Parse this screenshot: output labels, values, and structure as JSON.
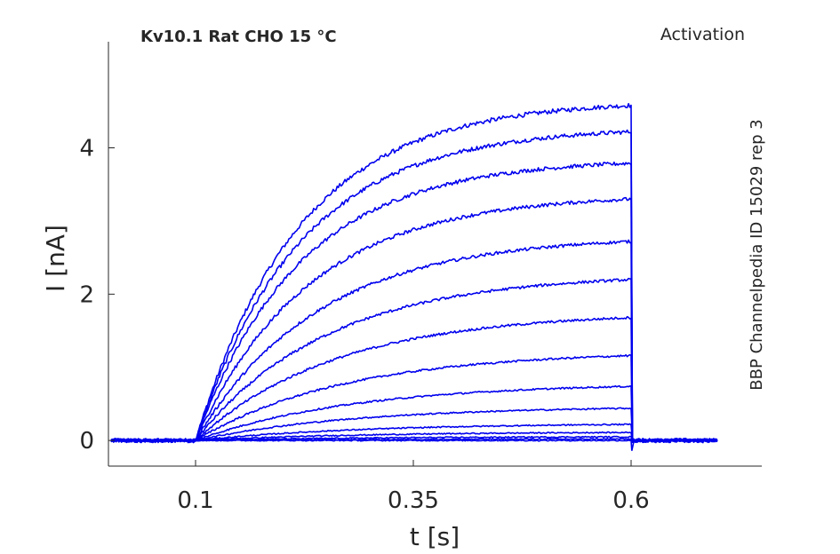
{
  "chart_data": {
    "type": "line",
    "title": "Kv10.1  Rat  CHO  15 °C",
    "protocol_label": "Activation",
    "side_label": "BBP Channelpedia ID 15029 rep 3",
    "xlabel": "t [s]",
    "ylabel": "I [nA]",
    "xlim": [
      0.0,
      0.75
    ],
    "ylim": [
      -0.35,
      5.45
    ],
    "xticks": [
      0.1,
      0.35,
      0.6
    ],
    "xtick_labels": [
      "0.1",
      "0.35",
      "0.6"
    ],
    "yticks": [
      0,
      2,
      4
    ],
    "ytick_labels": [
      "0",
      "2",
      "4"
    ],
    "grid": false,
    "trace_color": "#0000ee",
    "time_range": [
      0.003,
      0.7
    ],
    "pulse_on": 0.1,
    "pulse_off": 0.6,
    "series": [
      {
        "steady_nA": 4.58,
        "tau_s": 0.12
      },
      {
        "steady_nA": 4.22,
        "tau_s": 0.12
      },
      {
        "steady_nA": 3.79,
        "tau_s": 0.12
      },
      {
        "steady_nA": 3.3,
        "tau_s": 0.13
      },
      {
        "steady_nA": 2.72,
        "tau_s": 0.14
      },
      {
        "steady_nA": 2.2,
        "tau_s": 0.15
      },
      {
        "steady_nA": 1.68,
        "tau_s": 0.16
      },
      {
        "steady_nA": 1.16,
        "tau_s": 0.17
      },
      {
        "steady_nA": 0.74,
        "tau_s": 0.18
      },
      {
        "steady_nA": 0.44,
        "tau_s": 0.18
      },
      {
        "steady_nA": 0.22,
        "tau_s": 0.19
      },
      {
        "steady_nA": 0.11,
        "tau_s": 0.19
      },
      {
        "steady_nA": 0.05,
        "tau_s": 0.2
      },
      {
        "steady_nA": 0.02,
        "tau_s": 0.2
      },
      {
        "steady_nA": 0.0,
        "tau_s": 0.2
      }
    ]
  }
}
